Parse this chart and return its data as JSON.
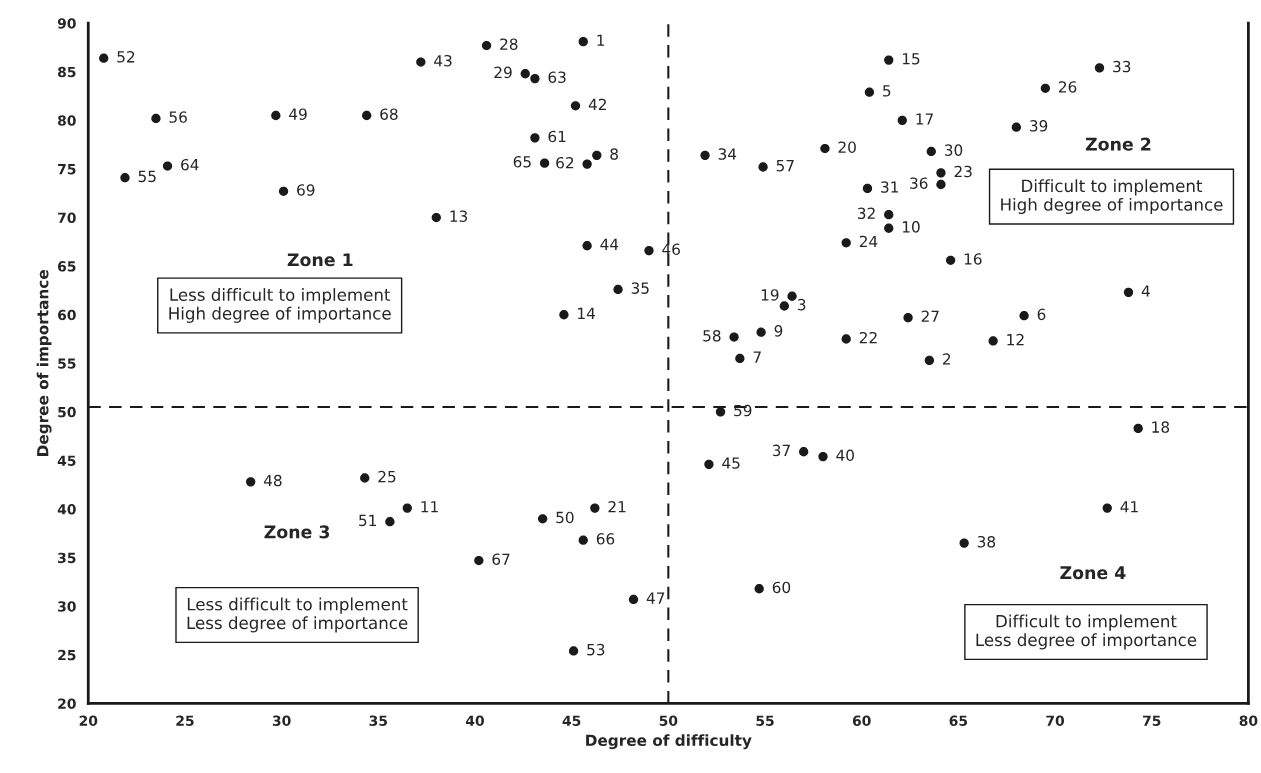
{
  "chart_data": {
    "type": "scatter",
    "xlabel": "Degree of difficulty",
    "ylabel": "Degree of importance",
    "x": [
      45.6,
      63.5,
      56.0,
      73.8,
      60.4,
      68.4,
      53.7,
      46.3,
      54.8,
      61.4,
      36.5,
      66.8,
      38.0,
      44.6,
      61.4,
      64.6,
      62.1,
      74.3,
      56.4,
      58.1,
      46.2,
      59.2,
      64.1,
      59.2,
      34.3,
      69.5,
      62.4,
      40.6,
      42.6,
      63.6,
      60.3,
      61.4,
      72.3,
      51.9,
      47.4,
      64.1,
      57.0,
      65.3,
      68.0,
      58.0,
      72.7,
      45.2,
      37.2,
      45.8,
      52.1,
      49.0,
      48.2,
      28.4,
      29.7,
      43.5,
      35.6,
      20.8,
      45.1,
      21.9,
      23.5,
      54.9,
      53.4,
      52.7,
      54.7,
      43.1,
      45.8,
      43.1,
      24.1,
      43.6,
      45.6,
      40.2,
      34.4,
      30.1
    ],
    "values": [
      88.1,
      55.3,
      60.9,
      62.3,
      82.9,
      59.9,
      55.5,
      76.4,
      58.2,
      68.9,
      40.1,
      57.3,
      70.0,
      60.0,
      86.2,
      65.6,
      80.0,
      48.3,
      61.9,
      77.1,
      40.1,
      57.5,
      74.6,
      67.4,
      43.2,
      83.3,
      59.7,
      87.7,
      84.8,
      76.8,
      73.0,
      70.3,
      85.4,
      76.4,
      62.6,
      73.4,
      45.9,
      36.5,
      79.3,
      45.4,
      40.1,
      81.5,
      86.0,
      67.1,
      44.6,
      66.6,
      30.7,
      42.8,
      80.5,
      39.0,
      38.7,
      86.4,
      25.4,
      74.1,
      80.2,
      75.2,
      57.7,
      50.0,
      31.8,
      78.2,
      75.5,
      84.3,
      75.3,
      75.6,
      36.8,
      34.7,
      80.5,
      72.7
    ],
    "color": "#1a1a1a",
    "marker": "circle",
    "xlim": [
      20,
      80
    ],
    "xticks": [
      20,
      25,
      30,
      35,
      40,
      45,
      50,
      55,
      60,
      65,
      70,
      75,
      80
    ],
    "ylim": [
      20,
      90
    ],
    "yticks": [
      20,
      25,
      30,
      35,
      40,
      45,
      50,
      55,
      60,
      65,
      70,
      75,
      80,
      85,
      90
    ],
    "grid": false,
    "legend": false,
    "ref_lines": [
      {
        "axis": "x",
        "value": 50,
        "line_style": "dashed",
        "color": "#1a1a1a"
      },
      {
        "axis": "y",
        "value": 50.5,
        "line_style": "dashed",
        "color": "#1a1a1a"
      }
    ],
    "annotations": [
      "Zone 1",
      "Less difficult to implement\nHigh degree of importance",
      "Zone 2",
      "Difficult to implement\nHigh degree of importance",
      "Zone 3",
      "Less difficult to implement\nLess degree of importance",
      "Zone 4",
      "Difficult to implement\nLess degree of importance",
      {
        "text": "1",
        "x": 45.6,
        "y": 88.1
      },
      {
        "text": "2",
        "x": 63.5,
        "y": 55.3
      },
      {
        "text": "3",
        "x": 56.0,
        "y": 60.9
      },
      {
        "text": "4",
        "x": 73.8,
        "y": 62.3
      },
      {
        "text": "5",
        "x": 60.4,
        "y": 82.9
      },
      {
        "text": "6",
        "x": 68.4,
        "y": 59.9
      },
      {
        "text": "7",
        "x": 53.7,
        "y": 55.5
      },
      {
        "text": "8",
        "x": 46.3,
        "y": 76.4
      },
      {
        "text": "9",
        "x": 54.8,
        "y": 58.2
      },
      {
        "text": "10",
        "x": 61.4,
        "y": 68.9
      },
      {
        "text": "11",
        "x": 36.5,
        "y": 40.1
      },
      {
        "text": "12",
        "x": 66.8,
        "y": 57.3
      },
      {
        "text": "13",
        "x": 38.0,
        "y": 70.0
      },
      {
        "text": "14",
        "x": 44.6,
        "y": 60.0
      },
      {
        "text": "15",
        "x": 61.4,
        "y": 86.2
      },
      {
        "text": "16",
        "x": 64.6,
        "y": 65.6
      },
      {
        "text": "17",
        "x": 62.1,
        "y": 80.0
      },
      {
        "text": "18",
        "x": 74.3,
        "y": 48.3
      },
      {
        "text": "19",
        "x": 56.4,
        "y": 61.9
      },
      {
        "text": "20",
        "x": 58.1,
        "y": 77.1
      },
      {
        "text": "21",
        "x": 46.2,
        "y": 40.1
      },
      {
        "text": "22",
        "x": 59.2,
        "y": 57.5
      },
      {
        "text": "23",
        "x": 64.1,
        "y": 74.6
      },
      {
        "text": "24",
        "x": 59.2,
        "y": 67.4
      },
      {
        "text": "25",
        "x": 34.3,
        "y": 43.2
      },
      {
        "text": "26",
        "x": 69.5,
        "y": 83.3
      },
      {
        "text": "27",
        "x": 62.4,
        "y": 59.7
      },
      {
        "text": "28",
        "x": 40.6,
        "y": 87.7
      },
      {
        "text": "29",
        "x": 42.6,
        "y": 84.8
      },
      {
        "text": "30",
        "x": 63.6,
        "y": 76.8
      },
      {
        "text": "31",
        "x": 60.3,
        "y": 73.0
      },
      {
        "text": "32",
        "x": 61.4,
        "y": 70.3
      },
      {
        "text": "33",
        "x": 72.3,
        "y": 85.4
      },
      {
        "text": "34",
        "x": 51.9,
        "y": 76.4
      },
      {
        "text": "35",
        "x": 47.4,
        "y": 62.6
      },
      {
        "text": "36",
        "x": 64.1,
        "y": 73.4
      },
      {
        "text": "37",
        "x": 57.0,
        "y": 45.9
      },
      {
        "text": "38",
        "x": 65.3,
        "y": 36.5
      },
      {
        "text": "39",
        "x": 68.0,
        "y": 79.3
      },
      {
        "text": "40",
        "x": 58.0,
        "y": 45.4
      },
      {
        "text": "41",
        "x": 72.7,
        "y": 40.1
      },
      {
        "text": "42",
        "x": 45.2,
        "y": 81.5
      },
      {
        "text": "43",
        "x": 37.2,
        "y": 86.0
      },
      {
        "text": "44",
        "x": 45.8,
        "y": 67.1
      },
      {
        "text": "45",
        "x": 52.1,
        "y": 44.6
      },
      {
        "text": "46",
        "x": 49.0,
        "y": 66.6
      },
      {
        "text": "47",
        "x": 48.2,
        "y": 30.7
      },
      {
        "text": "48",
        "x": 28.4,
        "y": 42.8
      },
      {
        "text": "49",
        "x": 29.7,
        "y": 80.5
      },
      {
        "text": "50",
        "x": 43.5,
        "y": 39.0
      },
      {
        "text": "51",
        "x": 35.6,
        "y": 38.7
      },
      {
        "text": "52",
        "x": 20.8,
        "y": 86.4
      },
      {
        "text": "53",
        "x": 45.1,
        "y": 25.4
      },
      {
        "text": "55",
        "x": 21.9,
        "y": 74.1
      },
      {
        "text": "56",
        "x": 23.5,
        "y": 80.2
      },
      {
        "text": "57",
        "x": 54.9,
        "y": 75.2
      },
      {
        "text": "58",
        "x": 53.4,
        "y": 57.7
      },
      {
        "text": "59",
        "x": 52.7,
        "y": 50.0
      },
      {
        "text": "60",
        "x": 54.7,
        "y": 31.8
      },
      {
        "text": "61",
        "x": 43.1,
        "y": 78.2
      },
      {
        "text": "62",
        "x": 45.8,
        "y": 75.5
      },
      {
        "text": "63",
        "x": 43.1,
        "y": 84.3
      },
      {
        "text": "64",
        "x": 24.1,
        "y": 75.3
      },
      {
        "text": "65",
        "x": 43.6,
        "y": 75.6
      },
      {
        "text": "66",
        "x": 45.6,
        "y": 36.8
      },
      {
        "text": "67",
        "x": 40.2,
        "y": 34.7
      },
      {
        "text": "68",
        "x": 34.4,
        "y": 80.5
      },
      {
        "text": "69",
        "x": 30.1,
        "y": 72.7
      }
    ]
  }
}
